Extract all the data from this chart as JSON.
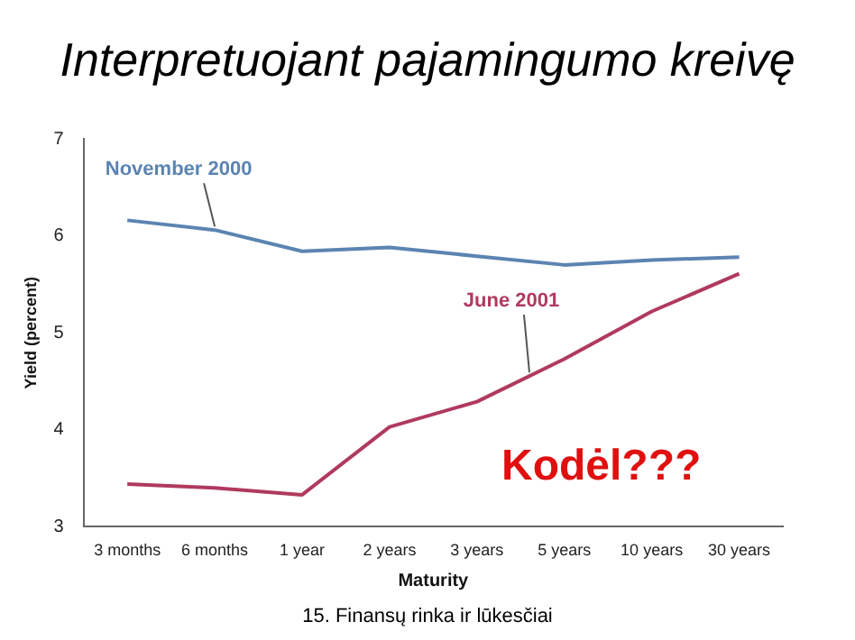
{
  "chart_data": {
    "type": "line",
    "title": "Interpretuojant pajamingumo kreivę",
    "xlabel": "Maturity",
    "ylabel": "Yield (percent)",
    "categories": [
      "3 months",
      "6 months",
      "1 year",
      "2 years",
      "3 years",
      "5 years",
      "10 years",
      "30 years"
    ],
    "series": [
      {
        "name": "November 2000",
        "color": "#5b84b1",
        "values": [
          6.16,
          6.06,
          5.84,
          5.88,
          5.79,
          5.7,
          5.75,
          5.78
        ]
      },
      {
        "name": "June 2001",
        "color": "#b03a5e",
        "values": [
          3.44,
          3.4,
          3.33,
          4.03,
          4.29,
          4.73,
          5.22,
          5.61
        ]
      }
    ],
    "ylim": [
      3,
      7
    ],
    "yticks": [
      3,
      4,
      5,
      6,
      7
    ],
    "grid": false,
    "legend": false,
    "marker": "none",
    "line_style": "solid",
    "annotations": [
      "Kodėl???",
      "15. Finansų rinka ir lūkesčiai"
    ]
  }
}
